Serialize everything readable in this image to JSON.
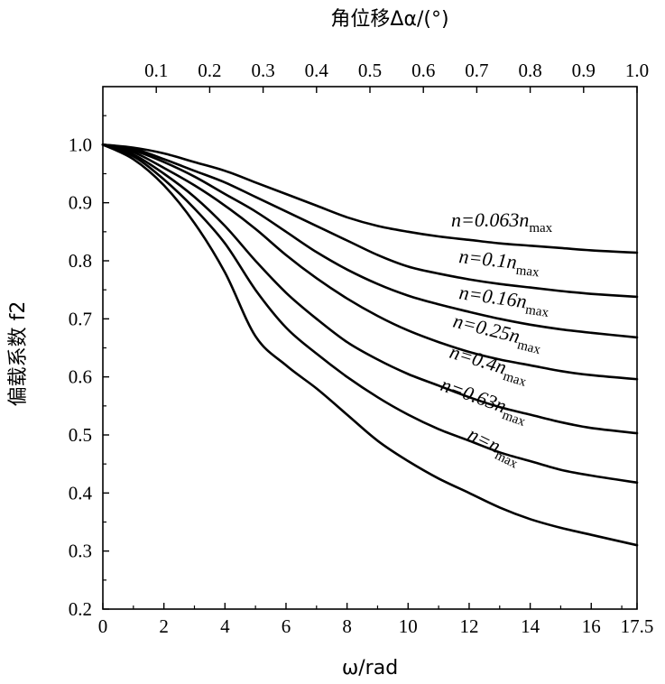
{
  "chart_data": {
    "type": "line",
    "title": "",
    "xlabel": "ω/rad",
    "ylabel": "偏载系数 f2",
    "x2label": "角位移Δα/(°)",
    "xlim": [
      0,
      17.5
    ],
    "ylim": [
      0.2,
      1.1
    ],
    "x_ticks": [
      0,
      2,
      4,
      6,
      8,
      10,
      12,
      14,
      16,
      17.5
    ],
    "x_tick_labels": [
      "0",
      "2",
      "4",
      "6",
      "8",
      "10",
      "12",
      "14",
      "16",
      "17.5"
    ],
    "y_ticks": [
      0.2,
      0.3,
      0.4,
      0.5,
      0.6,
      0.7,
      0.8,
      0.9,
      1.0
    ],
    "y_tick_labels": [
      "0.2",
      "0.3",
      "0.4",
      "0.5",
      "0.6",
      "0.7",
      "0.8",
      "0.9",
      "1.0"
    ],
    "x2_ticks": [
      0.1,
      0.2,
      0.3,
      0.4,
      0.5,
      0.6,
      0.7,
      0.8,
      0.9,
      1.0
    ],
    "x2_tick_labels": [
      "0.1",
      "0.2",
      "0.3",
      "0.4",
      "0.5",
      "0.6",
      "0.7",
      "0.8",
      "0.9",
      "1.0"
    ],
    "grid": false,
    "line_color": "#000000",
    "series": [
      {
        "label_main": "n=0.063n",
        "label_sub": "max",
        "x": [
          0,
          1,
          2,
          3,
          4,
          5,
          6,
          7,
          8,
          9,
          10,
          11,
          12,
          13,
          14,
          15,
          16,
          17.5
        ],
        "y": [
          1.0,
          0.995,
          0.985,
          0.97,
          0.955,
          0.935,
          0.915,
          0.895,
          0.875,
          0.86,
          0.85,
          0.842,
          0.836,
          0.83,
          0.826,
          0.822,
          0.818,
          0.814
        ]
      },
      {
        "label_main": "n=0.1n",
        "label_sub": "max",
        "x": [
          0,
          1,
          2,
          3,
          4,
          5,
          6,
          7,
          8,
          9,
          10,
          11,
          12,
          13,
          14,
          15,
          16,
          17.5
        ],
        "y": [
          1.0,
          0.993,
          0.975,
          0.955,
          0.935,
          0.91,
          0.885,
          0.86,
          0.835,
          0.81,
          0.79,
          0.778,
          0.768,
          0.76,
          0.754,
          0.748,
          0.743,
          0.738
        ]
      },
      {
        "label_main": "n=0.16n",
        "label_sub": "max",
        "x": [
          0,
          1,
          2,
          3,
          4,
          5,
          6,
          7,
          8,
          9,
          10,
          11,
          12,
          13,
          14,
          15,
          16,
          17.5
        ],
        "y": [
          1.0,
          0.99,
          0.97,
          0.945,
          0.915,
          0.885,
          0.85,
          0.815,
          0.785,
          0.76,
          0.74,
          0.725,
          0.712,
          0.7,
          0.69,
          0.682,
          0.676,
          0.668
        ]
      },
      {
        "label_main": "n=0.25n",
        "label_sub": "max",
        "x": [
          0,
          1,
          2,
          3,
          4,
          5,
          6,
          7,
          8,
          9,
          10,
          11,
          12,
          13,
          14,
          15,
          16,
          17.5
        ],
        "y": [
          1.0,
          0.987,
          0.96,
          0.93,
          0.895,
          0.855,
          0.81,
          0.77,
          0.735,
          0.705,
          0.68,
          0.66,
          0.643,
          0.63,
          0.62,
          0.61,
          0.603,
          0.596
        ]
      },
      {
        "label_main": "n=0.4n",
        "label_sub": "max",
        "x": [
          0,
          1,
          2,
          3,
          4,
          5,
          6,
          7,
          8,
          9,
          10,
          11,
          12,
          13,
          14,
          15,
          16,
          17.5
        ],
        "y": [
          1.0,
          0.983,
          0.95,
          0.91,
          0.86,
          0.8,
          0.745,
          0.7,
          0.66,
          0.63,
          0.605,
          0.585,
          0.565,
          0.548,
          0.535,
          0.522,
          0.512,
          0.503
        ]
      },
      {
        "label_main": "n=0.63n",
        "label_sub": "max",
        "x": [
          0,
          1,
          2,
          3,
          4,
          5,
          6,
          7,
          8,
          9,
          10,
          11,
          12,
          13,
          14,
          15,
          16,
          17.5
        ],
        "y": [
          1.0,
          0.98,
          0.94,
          0.89,
          0.83,
          0.75,
          0.685,
          0.64,
          0.6,
          0.565,
          0.535,
          0.51,
          0.49,
          0.47,
          0.455,
          0.44,
          0.43,
          0.418
        ]
      },
      {
        "label_main": "n=n",
        "label_sub": "max",
        "x": [
          0,
          1,
          2,
          3,
          4,
          5,
          6,
          7,
          8,
          9,
          10,
          11,
          12,
          13,
          14,
          15,
          16,
          17.5
        ],
        "y": [
          1.0,
          0.975,
          0.93,
          0.865,
          0.78,
          0.67,
          0.62,
          0.58,
          0.535,
          0.49,
          0.455,
          0.425,
          0.4,
          0.375,
          0.355,
          0.34,
          0.328,
          0.31
        ]
      }
    ]
  }
}
